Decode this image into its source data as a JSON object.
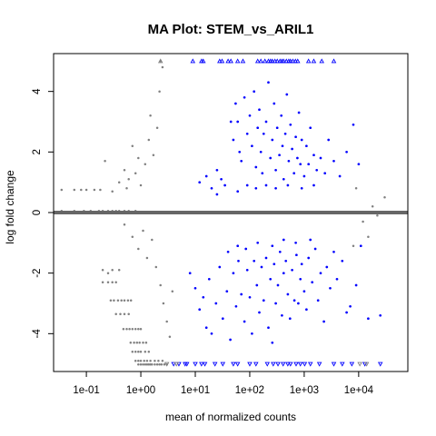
{
  "chart_data": {
    "type": "scatter",
    "title": "MA Plot: STEM_vs_ARIL1",
    "xlabel": "mean of normalized counts",
    "ylabel": "log fold change",
    "x_scale": "log10",
    "xlim": [
      0.025,
      80000
    ],
    "ylim": [
      -5.25,
      5.25
    ],
    "x_ticks": [
      {
        "value": 0.1,
        "label": "1e-01"
      },
      {
        "value": 1,
        "label": "1e+00"
      },
      {
        "value": 10,
        "label": "1e+01"
      },
      {
        "value": 100,
        "label": "1e+02"
      },
      {
        "value": 1000,
        "label": "1e+03"
      },
      {
        "value": 10000,
        "label": "1e+04"
      }
    ],
    "y_ticks": [
      {
        "value": -4,
        "label": "-4"
      },
      {
        "value": -2,
        "label": "-2"
      },
      {
        "value": 0,
        "label": "0"
      },
      {
        "value": 2,
        "label": "2"
      },
      {
        "value": 4,
        "label": "4"
      }
    ],
    "reference_line": {
      "y": 0,
      "color": "#666666"
    },
    "grid": false,
    "colors": {
      "not_significant": "#808080",
      "significant": "#0000FF"
    },
    "series": [
      {
        "group": "not significant",
        "color": "#808080",
        "points": [
          [
            0.035,
            0.75
          ],
          [
            0.035,
            0.05
          ],
          [
            0.06,
            0.05
          ],
          [
            0.06,
            0.75
          ],
          [
            0.08,
            0.75
          ],
          [
            0.09,
            0.05
          ],
          [
            0.1,
            0.75
          ],
          [
            0.12,
            0.05
          ],
          [
            0.14,
            0.75
          ],
          [
            0.17,
            0.05
          ],
          [
            0.18,
            0.75
          ],
          [
            0.2,
            0.05
          ],
          [
            0.25,
            0.05
          ],
          [
            0.3,
            0.05
          ],
          [
            0.35,
            0.05
          ],
          [
            0.4,
            0.05
          ],
          [
            0.5,
            0.05
          ],
          [
            0.6,
            0.05
          ],
          [
            0.8,
            0.05
          ],
          [
            0.22,
            1.7
          ],
          [
            0.3,
            0.7
          ],
          [
            0.4,
            1.0
          ],
          [
            0.5,
            1.4
          ],
          [
            0.55,
            0.8
          ],
          [
            0.6,
            1.1
          ],
          [
            0.7,
            2.2
          ],
          [
            0.8,
            1.3
          ],
          [
            0.9,
            1.8
          ],
          [
            1.0,
            0.9
          ],
          [
            1.2,
            1.6
          ],
          [
            1.4,
            2.4
          ],
          [
            1.5,
            3.2
          ],
          [
            1.7,
            1.9
          ],
          [
            2.0,
            2.8
          ],
          [
            2.2,
            4.0
          ],
          [
            2.5,
            4.8
          ],
          [
            2.3,
            5.0
          ],
          [
            0.2,
            -2.3
          ],
          [
            0.25,
            -2.3
          ],
          [
            0.3,
            -2.3
          ],
          [
            0.35,
            -2.3
          ],
          [
            0.2,
            -1.9
          ],
          [
            0.3,
            -1.9
          ],
          [
            0.4,
            -1.9
          ],
          [
            0.25,
            -2.0
          ],
          [
            0.28,
            -2.9
          ],
          [
            0.32,
            -2.9
          ],
          [
            0.38,
            -2.9
          ],
          [
            0.44,
            -2.9
          ],
          [
            0.5,
            -2.9
          ],
          [
            0.58,
            -2.9
          ],
          [
            0.66,
            -2.9
          ],
          [
            0.35,
            -3.35
          ],
          [
            0.42,
            -3.35
          ],
          [
            0.5,
            -3.35
          ],
          [
            0.6,
            -3.35
          ],
          [
            0.48,
            -3.85
          ],
          [
            0.55,
            -3.85
          ],
          [
            0.62,
            -3.85
          ],
          [
            0.7,
            -3.85
          ],
          [
            0.8,
            -3.85
          ],
          [
            0.9,
            -3.85
          ],
          [
            1.0,
            -3.85
          ],
          [
            0.65,
            -4.3
          ],
          [
            0.75,
            -4.3
          ],
          [
            0.85,
            -4.3
          ],
          [
            0.95,
            -4.3
          ],
          [
            1.1,
            -4.3
          ],
          [
            1.25,
            -4.3
          ],
          [
            0.7,
            -4.6
          ],
          [
            0.8,
            -4.6
          ],
          [
            0.9,
            -4.6
          ],
          [
            1.0,
            -4.6
          ],
          [
            1.2,
            -4.6
          ],
          [
            1.4,
            -4.6
          ],
          [
            0.8,
            -4.9
          ],
          [
            0.9,
            -4.9
          ],
          [
            1.0,
            -4.9
          ],
          [
            1.15,
            -4.9
          ],
          [
            1.3,
            -4.9
          ],
          [
            1.5,
            -4.9
          ],
          [
            1.8,
            -4.9
          ],
          [
            2.1,
            -4.9
          ],
          [
            2.5,
            -4.9
          ],
          [
            0.9,
            -5.02
          ],
          [
            1.0,
            -5.02
          ],
          [
            1.1,
            -5.02
          ],
          [
            1.2,
            -5.02
          ],
          [
            1.3,
            -5.02
          ],
          [
            1.4,
            -5.02
          ],
          [
            1.5,
            -5.02
          ],
          [
            1.6,
            -5.02
          ],
          [
            1.8,
            -5.02
          ],
          [
            2.0,
            -5.02
          ],
          [
            2.2,
            -5.02
          ],
          [
            2.4,
            -5.02
          ],
          [
            2.7,
            -5.02
          ],
          [
            3.0,
            -5.02
          ],
          [
            0.5,
            -0.4
          ],
          [
            0.7,
            -0.8
          ],
          [
            0.9,
            -1.2
          ],
          [
            1.1,
            -0.6
          ],
          [
            1.3,
            -1.5
          ],
          [
            1.6,
            -0.9
          ],
          [
            1.9,
            -1.8
          ],
          [
            2.3,
            -2.4
          ],
          [
            2.6,
            -3.0
          ],
          [
            3.0,
            -3.6
          ],
          [
            3.4,
            -4.1
          ],
          [
            3.8,
            -2.6
          ],
          [
            30000,
            0.5
          ],
          [
            18000,
            0.2
          ],
          [
            12000,
            -0.3
          ],
          [
            15000,
            -0.8
          ],
          [
            22000,
            -0.1
          ],
          [
            9000,
            0.8
          ],
          [
            8000,
            -1.1
          ]
        ]
      },
      {
        "group": "significant",
        "color": "#0000FF",
        "points": [
          [
            45,
            3.0
          ],
          [
            50,
            2.4
          ],
          [
            55,
            3.6
          ],
          [
            60,
            3.0
          ],
          [
            65,
            2.0
          ],
          [
            70,
            1.7
          ],
          [
            80,
            3.8
          ],
          [
            90,
            2.6
          ],
          [
            100,
            3.2
          ],
          [
            110,
            2.2
          ],
          [
            120,
            4.0
          ],
          [
            130,
            1.5
          ],
          [
            140,
            2.8
          ],
          [
            150,
            3.4
          ],
          [
            160,
            2.0
          ],
          [
            170,
            1.3
          ],
          [
            180,
            2.6
          ],
          [
            200,
            3.0
          ],
          [
            220,
            4.3
          ],
          [
            240,
            1.8
          ],
          [
            260,
            2.4
          ],
          [
            280,
            3.6
          ],
          [
            300,
            1.4
          ],
          [
            320,
            2.8
          ],
          [
            350,
            1.9
          ],
          [
            380,
            3.2
          ],
          [
            400,
            2.2
          ],
          [
            420,
            1.1
          ],
          [
            450,
            2.6
          ],
          [
            480,
            3.9
          ],
          [
            520,
            1.7
          ],
          [
            560,
            2.9
          ],
          [
            600,
            2.1
          ],
          [
            650,
            1.3
          ],
          [
            700,
            2.5
          ],
          [
            750,
            1.8
          ],
          [
            800,
            3.3
          ],
          [
            850,
            1.6
          ],
          [
            900,
            2.4
          ],
          [
            1000,
            1.2
          ],
          [
            1100,
            2.2
          ],
          [
            1200,
            1.6
          ],
          [
            1300,
            2.8
          ],
          [
            1500,
            1.9
          ],
          [
            1700,
            1.4
          ],
          [
            2000,
            1.8
          ],
          [
            2400,
            1.3
          ],
          [
            2800,
            2.4
          ],
          [
            3500,
            1.7
          ],
          [
            4500,
            1.2
          ],
          [
            6000,
            2.0
          ],
          [
            8000,
            2.9
          ],
          [
            10000,
            1.6
          ],
          [
            12,
            1.0
          ],
          [
            16,
            1.2
          ],
          [
            20,
            0.8
          ],
          [
            25,
            1.4
          ],
          [
            30,
            1.1
          ],
          [
            35,
            0.9
          ],
          [
            25,
            0.6
          ],
          [
            60,
            0.7
          ],
          [
            90,
            0.9
          ],
          [
            130,
            0.8
          ],
          [
            200,
            0.9
          ],
          [
            300,
            0.8
          ],
          [
            500,
            0.9
          ],
          [
            900,
            0.8
          ],
          [
            1500,
            0.9
          ],
          [
            8,
            -2.0
          ],
          [
            10,
            -2.5
          ],
          [
            12,
            -3.2
          ],
          [
            14,
            -2.8
          ],
          [
            16,
            -3.8
          ],
          [
            18,
            -2.2
          ],
          [
            20,
            -4.0
          ],
          [
            24,
            -3.0
          ],
          [
            28,
            -1.8
          ],
          [
            32,
            -3.5
          ],
          [
            38,
            -2.6
          ],
          [
            44,
            -4.2
          ],
          [
            50,
            -2.0
          ],
          [
            56,
            -3.1
          ],
          [
            62,
            -1.6
          ],
          [
            70,
            -2.7
          ],
          [
            80,
            -3.6
          ],
          [
            90,
            -1.9
          ],
          [
            100,
            -2.8
          ],
          [
            110,
            -4.0
          ],
          [
            120,
            -1.6
          ],
          [
            135,
            -2.4
          ],
          [
            150,
            -3.3
          ],
          [
            165,
            -1.8
          ],
          [
            180,
            -2.9
          ],
          [
            200,
            -1.5
          ],
          [
            220,
            -3.8
          ],
          [
            240,
            -2.2
          ],
          [
            260,
            -4.3
          ],
          [
            280,
            -1.7
          ],
          [
            300,
            -3.0
          ],
          [
            330,
            -2.4
          ],
          [
            360,
            -1.3
          ],
          [
            390,
            -3.4
          ],
          [
            420,
            -2.0
          ],
          [
            460,
            -1.6
          ],
          [
            500,
            -2.7
          ],
          [
            550,
            -3.5
          ],
          [
            600,
            -1.9
          ],
          [
            660,
            -2.9
          ],
          [
            720,
            -1.4
          ],
          [
            780,
            -3.0
          ],
          [
            850,
            -2.2
          ],
          [
            900,
            -1.7
          ],
          [
            1000,
            -2.6
          ],
          [
            1100,
            -3.2
          ],
          [
            1200,
            -1.5
          ],
          [
            1400,
            -2.3
          ],
          [
            1600,
            -1.2
          ],
          [
            1800,
            -2.9
          ],
          [
            2000,
            -2.0
          ],
          [
            2300,
            -3.6
          ],
          [
            2600,
            -1.8
          ],
          [
            3000,
            -2.5
          ],
          [
            3500,
            -1.3
          ],
          [
            4000,
            -2.2
          ],
          [
            5000,
            -1.6
          ],
          [
            6000,
            -3.3
          ],
          [
            7000,
            -3.1
          ],
          [
            9000,
            -2.4
          ],
          [
            11000,
            -1.1
          ],
          [
            15000,
            -3.5
          ],
          [
            25000,
            -3.4
          ],
          [
            40,
            -1.3
          ],
          [
            60,
            -1.1
          ],
          [
            85,
            -1.2
          ],
          [
            140,
            -1.0
          ],
          [
            260,
            -1.1
          ],
          [
            420,
            -0.9
          ],
          [
            700,
            -1.0
          ],
          [
            1300,
            -0.9
          ]
        ]
      }
    ],
    "clipped_markers": [
      {
        "y": 5,
        "direction": "up",
        "color": "#0000FF",
        "x": [
          9,
          13,
          14,
          28,
          31,
          40,
          45,
          60,
          75,
          140,
          160,
          190,
          220,
          240,
          260,
          290,
          320,
          360,
          390,
          420,
          470,
          520,
          560,
          620,
          690,
          760,
          1200,
          1500,
          2100,
          3500
        ]
      },
      {
        "y": 5,
        "direction": "up",
        "color": "#808080",
        "x": [
          2.3
        ]
      },
      {
        "y": -5,
        "direction": "down",
        "color": "#0000FF",
        "x": [
          4,
          5,
          6.5,
          7,
          10,
          13,
          15,
          23,
          32,
          50,
          60,
          100,
          130,
          210,
          270,
          330,
          410,
          500,
          560,
          710,
          850,
          1020,
          1300,
          1900,
          3500,
          5000,
          7500,
          13000,
          25000
        ]
      },
      {
        "y": -5,
        "direction": "down",
        "color": "#808080",
        "x": [
          3,
          4.5,
          10500,
          14000
        ]
      }
    ]
  }
}
